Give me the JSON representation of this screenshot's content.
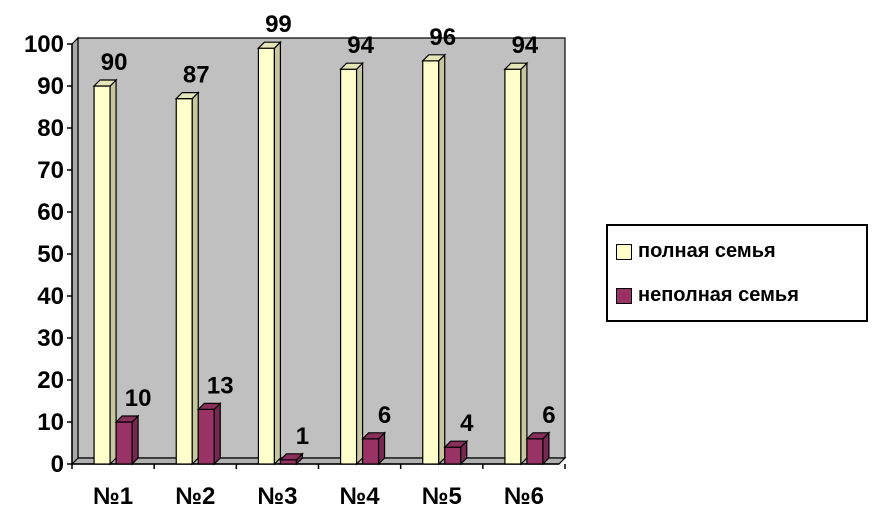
{
  "chart_data": {
    "type": "bar",
    "title": "",
    "xlabel": "",
    "ylabel": "",
    "categories": [
      "№1",
      "№2",
      "№3",
      "№4",
      "№5",
      "№6"
    ],
    "series": [
      {
        "name": "полная семья",
        "values": [
          90,
          87,
          99,
          94,
          96,
          94
        ],
        "color": "#FFFFCC"
      },
      {
        "name": "неполная семья",
        "values": [
          10,
          13,
          1,
          6,
          4,
          6
        ],
        "color": "#993366"
      }
    ],
    "ylim": [
      0,
      100
    ],
    "yticks": [
      0,
      10,
      20,
      30,
      40,
      50,
      60,
      70,
      80,
      90,
      100
    ],
    "grid": false,
    "plot_background": "#C0C0C0",
    "legend_position": "right",
    "style": "3d-columns"
  }
}
